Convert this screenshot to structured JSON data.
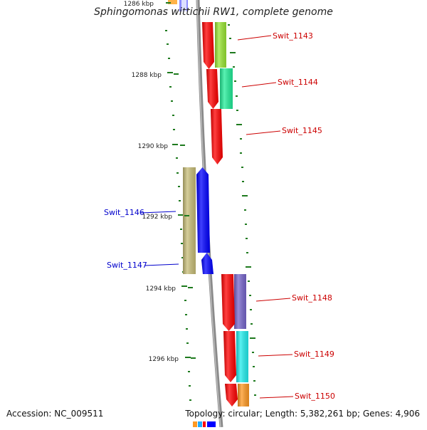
{
  "title": "Sphingomonas wittichii RW1, complete genome",
  "footer": {
    "accession": "Accession: NC_009511",
    "summary": "Topology: circular; Length: 5,382,261 bp; Genes: 4,906"
  },
  "colors": {
    "backbone": "#8a8a8a",
    "tick": "#1e7a1e",
    "forward_label": "#cc0000",
    "reverse_label": "#0000cc"
  },
  "scale_labels": [
    "1286 kbp",
    "1288 kbp",
    "1290 kbp",
    "1292 kbp",
    "1294 kbp",
    "1296 kbp"
  ],
  "genes": [
    {
      "label": "Swit_1143",
      "strand": "forward",
      "color": "#ff0000",
      "cog_color": "#99e633"
    },
    {
      "label": "Swit_1144",
      "strand": "forward",
      "color": "#ff0000",
      "cog_color": "#22ee99"
    },
    {
      "label": "Swit_1145",
      "strand": "forward",
      "color": "#ff0000",
      "cog_color": ""
    },
    {
      "label": "Swit_1146",
      "strand": "reverse",
      "color": "#0000ff",
      "cog_color": "#c8be78"
    },
    {
      "label": "Swit_1147",
      "strand": "reverse",
      "color": "#0000ff",
      "cog_color": ""
    },
    {
      "label": "Swit_1148",
      "strand": "forward",
      "color": "#ff0000",
      "cog_color": "#7766cc"
    },
    {
      "label": "Swit_1149",
      "strand": "forward",
      "color": "#ff0000",
      "cog_color": "#22eeee"
    },
    {
      "label": "Swit_1150",
      "strand": "forward",
      "color": "#ff0000",
      "cog_color": "#ff9922"
    }
  ]
}
